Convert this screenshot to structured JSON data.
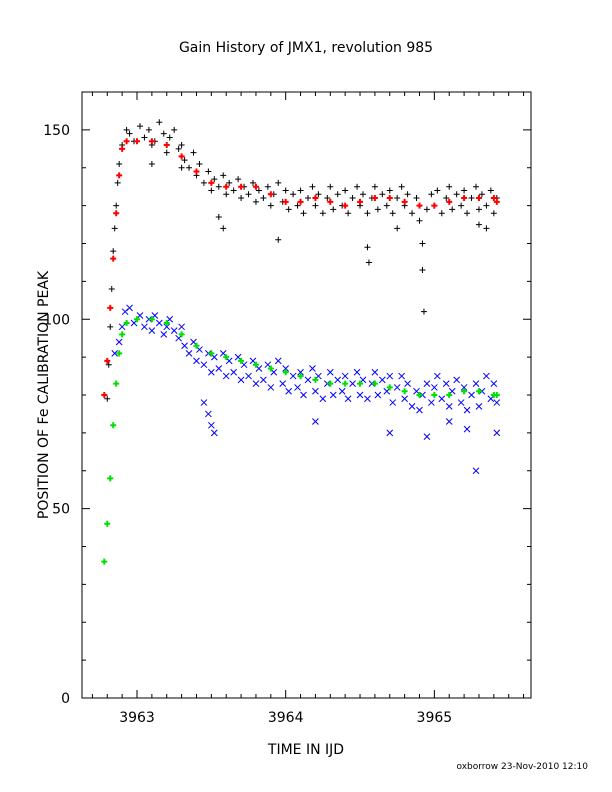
{
  "chart_data": {
    "type": "scatter",
    "title": "Gain History of JMX1, revolution 985",
    "xlabel": "TIME IN IJD",
    "ylabel": "POSITION OF Fe CALIBRATION PEAK",
    "xlim": [
      3962.63,
      3965.65
    ],
    "ylim": [
      0,
      160
    ],
    "x_ticks": [
      3963,
      3964,
      3965
    ],
    "y_ticks": [
      0,
      50,
      100,
      150
    ],
    "grid": false,
    "legend": "none",
    "series": [
      {
        "role": "data points (upper peak)",
        "marker": "+",
        "color": "#000000",
        "points": [
          [
            3962.8,
            79
          ],
          [
            3962.81,
            88
          ],
          [
            3962.82,
            98
          ],
          [
            3962.83,
            108
          ],
          [
            3962.84,
            118
          ],
          [
            3962.85,
            124
          ],
          [
            3962.86,
            130
          ],
          [
            3962.87,
            136
          ],
          [
            3962.88,
            141
          ],
          [
            3962.9,
            146
          ],
          [
            3962.93,
            150
          ],
          [
            3962.95,
            149
          ],
          [
            3962.98,
            147
          ],
          [
            3963.02,
            151
          ],
          [
            3963.05,
            148
          ],
          [
            3963.08,
            150
          ],
          [
            3963.1,
            146
          ],
          [
            3963.12,
            147
          ],
          [
            3963.15,
            152
          ],
          [
            3963.18,
            149
          ],
          [
            3963.2,
            144
          ],
          [
            3963.22,
            148
          ],
          [
            3963.25,
            150
          ],
          [
            3963.28,
            145
          ],
          [
            3963.3,
            146
          ],
          [
            3963.32,
            142
          ],
          [
            3963.35,
            140
          ],
          [
            3963.38,
            144
          ],
          [
            3963.4,
            138
          ],
          [
            3963.42,
            141
          ],
          [
            3963.45,
            136
          ],
          [
            3963.48,
            139
          ],
          [
            3963.5,
            134
          ],
          [
            3963.52,
            137
          ],
          [
            3963.55,
            135
          ],
          [
            3963.58,
            138
          ],
          [
            3963.6,
            133
          ],
          [
            3963.62,
            136
          ],
          [
            3963.65,
            134
          ],
          [
            3963.68,
            137
          ],
          [
            3963.7,
            132
          ],
          [
            3963.72,
            135
          ],
          [
            3963.75,
            133
          ],
          [
            3963.78,
            136
          ],
          [
            3963.8,
            131
          ],
          [
            3963.82,
            134
          ],
          [
            3963.85,
            132
          ],
          [
            3963.88,
            135
          ],
          [
            3963.9,
            130
          ],
          [
            3963.92,
            133
          ],
          [
            3963.95,
            136
          ],
          [
            3963.98,
            131
          ],
          [
            3964.0,
            134
          ],
          [
            3964.02,
            129
          ],
          [
            3964.05,
            133
          ],
          [
            3964.08,
            130
          ],
          [
            3964.1,
            134
          ],
          [
            3964.12,
            128
          ],
          [
            3964.15,
            132
          ],
          [
            3964.18,
            135
          ],
          [
            3964.2,
            130
          ],
          [
            3964.22,
            133
          ],
          [
            3964.25,
            128
          ],
          [
            3964.28,
            132
          ],
          [
            3964.3,
            135
          ],
          [
            3964.32,
            129
          ],
          [
            3964.35,
            133
          ],
          [
            3964.38,
            130
          ],
          [
            3964.4,
            134
          ],
          [
            3964.42,
            128
          ],
          [
            3964.45,
            132
          ],
          [
            3964.48,
            135
          ],
          [
            3964.5,
            130
          ],
          [
            3964.52,
            133
          ],
          [
            3964.55,
            128
          ],
          [
            3964.58,
            132
          ],
          [
            3964.6,
            135
          ],
          [
            3964.62,
            129
          ],
          [
            3964.65,
            133
          ],
          [
            3964.68,
            130
          ],
          [
            3964.7,
            134
          ],
          [
            3964.72,
            128
          ],
          [
            3964.75,
            132
          ],
          [
            3964.78,
            135
          ],
          [
            3964.8,
            130
          ],
          [
            3964.82,
            133
          ],
          [
            3964.85,
            128
          ],
          [
            3964.88,
            132
          ],
          [
            3964.9,
            126
          ],
          [
            3964.92,
            120
          ],
          [
            3964.95,
            129
          ],
          [
            3964.98,
            133
          ],
          [
            3965.0,
            130
          ],
          [
            3965.02,
            134
          ],
          [
            3965.05,
            128
          ],
          [
            3965.08,
            132
          ],
          [
            3965.1,
            135
          ],
          [
            3965.12,
            129
          ],
          [
            3965.15,
            133
          ],
          [
            3965.18,
            130
          ],
          [
            3965.2,
            134
          ],
          [
            3965.22,
            128
          ],
          [
            3965.25,
            132
          ],
          [
            3965.28,
            135
          ],
          [
            3965.3,
            129
          ],
          [
            3965.32,
            133
          ],
          [
            3965.35,
            130
          ],
          [
            3965.38,
            134
          ],
          [
            3965.4,
            128
          ],
          [
            3965.42,
            132
          ],
          [
            3963.1,
            141
          ],
          [
            3963.3,
            140
          ],
          [
            3963.55,
            127
          ],
          [
            3963.58,
            124
          ],
          [
            3963.95,
            121
          ],
          [
            3964.55,
            119
          ],
          [
            3964.56,
            115
          ],
          [
            3964.75,
            124
          ],
          [
            3964.92,
            113
          ],
          [
            3964.93,
            102
          ],
          [
            3965.3,
            125
          ],
          [
            3965.35,
            124
          ]
        ]
      },
      {
        "role": "smoothed fit (upper peak)",
        "marker": "+",
        "color": "#ff0000",
        "points": [
          [
            3962.78,
            80
          ],
          [
            3962.8,
            89
          ],
          [
            3962.82,
            103
          ],
          [
            3962.84,
            116
          ],
          [
            3962.86,
            128
          ],
          [
            3962.88,
            138
          ],
          [
            3962.9,
            145
          ],
          [
            3962.93,
            147
          ],
          [
            3963.0,
            147
          ],
          [
            3963.1,
            147
          ],
          [
            3963.2,
            146
          ],
          [
            3963.3,
            143
          ],
          [
            3963.4,
            139
          ],
          [
            3963.5,
            136
          ],
          [
            3963.6,
            135
          ],
          [
            3963.7,
            135
          ],
          [
            3963.8,
            135
          ],
          [
            3963.9,
            133
          ],
          [
            3964.0,
            131
          ],
          [
            3964.1,
            131
          ],
          [
            3964.2,
            132
          ],
          [
            3964.3,
            131
          ],
          [
            3964.4,
            130
          ],
          [
            3964.5,
            131
          ],
          [
            3964.6,
            132
          ],
          [
            3964.7,
            132
          ],
          [
            3964.8,
            131
          ],
          [
            3964.9,
            130
          ],
          [
            3965.0,
            130
          ],
          [
            3965.1,
            131
          ],
          [
            3965.2,
            132
          ],
          [
            3965.3,
            132
          ],
          [
            3965.4,
            132
          ],
          [
            3965.42,
            131
          ]
        ]
      },
      {
        "role": "data points (lower peak)",
        "marker": "x",
        "color": "#0000ff",
        "points": [
          [
            3962.85,
            91
          ],
          [
            3962.88,
            94
          ],
          [
            3962.9,
            98
          ],
          [
            3962.92,
            102
          ],
          [
            3962.95,
            103
          ],
          [
            3962.98,
            99
          ],
          [
            3963.02,
            101
          ],
          [
            3963.05,
            98
          ],
          [
            3963.08,
            100
          ],
          [
            3963.1,
            97
          ],
          [
            3963.12,
            101
          ],
          [
            3963.15,
            99
          ],
          [
            3963.18,
            96
          ],
          [
            3963.2,
            98
          ],
          [
            3963.22,
            100
          ],
          [
            3963.25,
            97
          ],
          [
            3963.28,
            95
          ],
          [
            3963.3,
            98
          ],
          [
            3963.32,
            93
          ],
          [
            3963.35,
            91
          ],
          [
            3963.38,
            94
          ],
          [
            3963.4,
            89
          ],
          [
            3963.42,
            92
          ],
          [
            3963.45,
            88
          ],
          [
            3963.48,
            91
          ],
          [
            3963.5,
            86
          ],
          [
            3963.52,
            90
          ],
          [
            3963.55,
            87
          ],
          [
            3963.58,
            91
          ],
          [
            3963.6,
            85
          ],
          [
            3963.62,
            89
          ],
          [
            3963.65,
            86
          ],
          [
            3963.68,
            90
          ],
          [
            3963.7,
            84
          ],
          [
            3963.72,
            88
          ],
          [
            3963.75,
            85
          ],
          [
            3963.78,
            89
          ],
          [
            3963.8,
            83
          ],
          [
            3963.82,
            87
          ],
          [
            3963.85,
            84
          ],
          [
            3963.88,
            88
          ],
          [
            3963.9,
            82
          ],
          [
            3963.92,
            86
          ],
          [
            3963.95,
            89
          ],
          [
            3963.98,
            83
          ],
          [
            3964.0,
            87
          ],
          [
            3964.02,
            81
          ],
          [
            3964.05,
            85
          ],
          [
            3964.08,
            82
          ],
          [
            3964.1,
            86
          ],
          [
            3964.12,
            80
          ],
          [
            3964.15,
            84
          ],
          [
            3964.18,
            87
          ],
          [
            3964.2,
            81
          ],
          [
            3964.22,
            85
          ],
          [
            3964.25,
            79
          ],
          [
            3964.28,
            83
          ],
          [
            3964.3,
            86
          ],
          [
            3964.32,
            80
          ],
          [
            3964.35,
            84
          ],
          [
            3964.38,
            81
          ],
          [
            3964.4,
            85
          ],
          [
            3964.42,
            79
          ],
          [
            3964.45,
            83
          ],
          [
            3964.48,
            86
          ],
          [
            3964.5,
            80
          ],
          [
            3964.52,
            84
          ],
          [
            3964.55,
            79
          ],
          [
            3964.58,
            83
          ],
          [
            3964.6,
            86
          ],
          [
            3964.62,
            80
          ],
          [
            3964.65,
            84
          ],
          [
            3964.68,
            81
          ],
          [
            3964.7,
            85
          ],
          [
            3964.72,
            78
          ],
          [
            3964.75,
            82
          ],
          [
            3964.78,
            85
          ],
          [
            3964.8,
            79
          ],
          [
            3964.82,
            83
          ],
          [
            3964.85,
            77
          ],
          [
            3964.88,
            81
          ],
          [
            3964.9,
            76
          ],
          [
            3964.92,
            80
          ],
          [
            3964.95,
            83
          ],
          [
            3964.98,
            78
          ],
          [
            3965.0,
            82
          ],
          [
            3965.02,
            85
          ],
          [
            3965.05,
            79
          ],
          [
            3965.08,
            83
          ],
          [
            3965.1,
            77
          ],
          [
            3965.12,
            81
          ],
          [
            3965.15,
            84
          ],
          [
            3965.18,
            78
          ],
          [
            3965.2,
            82
          ],
          [
            3965.22,
            76
          ],
          [
            3965.25,
            80
          ],
          [
            3965.28,
            83
          ],
          [
            3965.3,
            77
          ],
          [
            3965.32,
            81
          ],
          [
            3965.35,
            85
          ],
          [
            3965.38,
            79
          ],
          [
            3965.4,
            83
          ],
          [
            3965.42,
            78
          ],
          [
            3963.45,
            78
          ],
          [
            3963.48,
            75
          ],
          [
            3963.5,
            72
          ],
          [
            3963.52,
            70
          ],
          [
            3964.2,
            73
          ],
          [
            3964.7,
            70
          ],
          [
            3964.95,
            69
          ],
          [
            3965.1,
            73
          ],
          [
            3965.22,
            71
          ],
          [
            3965.28,
            60
          ],
          [
            3965.42,
            70
          ]
        ]
      },
      {
        "role": "smoothed fit (lower peak)",
        "marker": "+",
        "color": "#00e000",
        "points": [
          [
            3962.78,
            36
          ],
          [
            3962.8,
            46
          ],
          [
            3962.82,
            58
          ],
          [
            3962.84,
            72
          ],
          [
            3962.86,
            83
          ],
          [
            3962.88,
            91
          ],
          [
            3962.9,
            96
          ],
          [
            3962.93,
            99
          ],
          [
            3963.0,
            100
          ],
          [
            3963.1,
            100
          ],
          [
            3963.2,
            99
          ],
          [
            3963.3,
            96
          ],
          [
            3963.4,
            93
          ],
          [
            3963.5,
            91
          ],
          [
            3963.6,
            90
          ],
          [
            3963.7,
            89
          ],
          [
            3963.8,
            88
          ],
          [
            3963.9,
            87
          ],
          [
            3964.0,
            86
          ],
          [
            3964.1,
            85
          ],
          [
            3964.2,
            84
          ],
          [
            3964.3,
            83
          ],
          [
            3964.4,
            83
          ],
          [
            3964.5,
            83
          ],
          [
            3964.6,
            83
          ],
          [
            3964.7,
            82
          ],
          [
            3964.8,
            81
          ],
          [
            3964.9,
            80
          ],
          [
            3965.0,
            80
          ],
          [
            3965.1,
            80
          ],
          [
            3965.2,
            81
          ],
          [
            3965.3,
            81
          ],
          [
            3965.4,
            80
          ],
          [
            3965.42,
            80
          ]
        ]
      }
    ]
  },
  "footer": {
    "credit": "oxborrow 23-Nov-2010 12:10"
  }
}
